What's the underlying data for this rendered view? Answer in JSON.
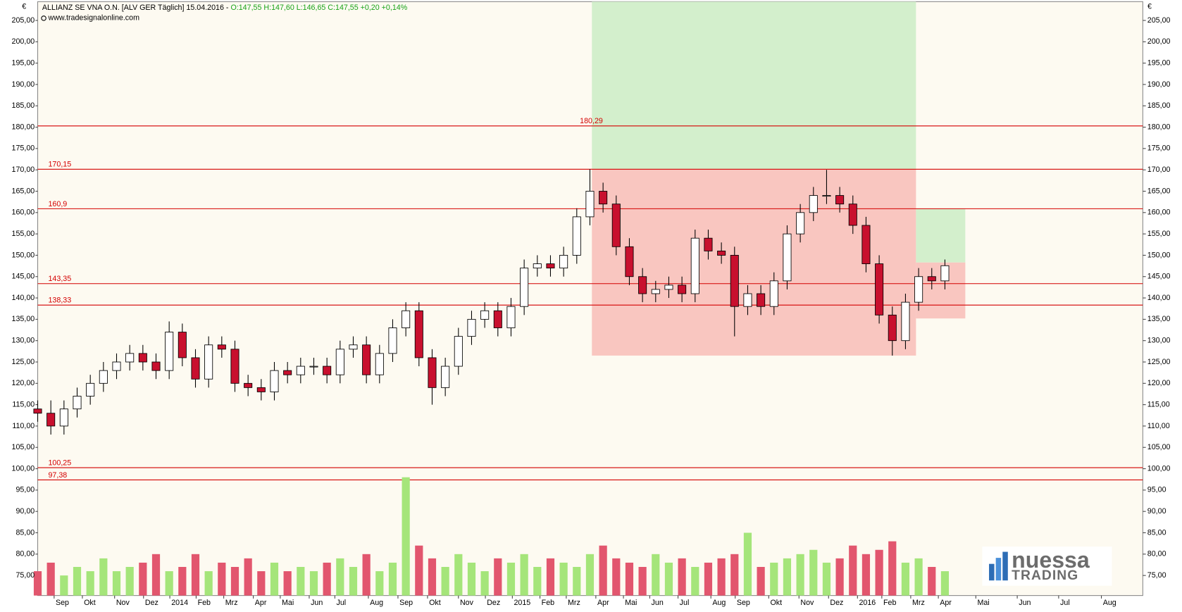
{
  "chart_data": {
    "type": "candlestick",
    "title": "ALLIANZ SE VNA O.N. [ALV GER  Täglich] 15.04.2016 -",
    "quote": "O:147,55 H:147,60 L:146,65 C:147,55 +0,20 +0,14%",
    "subtitle": "www.tradesignalonline.com",
    "currency": "€",
    "logo": [
      "nuessa",
      "TRADING"
    ],
    "x": [
      0,
      2,
      4,
      6,
      8,
      10,
      12,
      14,
      16,
      18,
      20,
      22,
      24,
      26,
      28,
      30,
      32,
      34,
      36,
      38,
      40,
      42,
      44,
      46,
      48,
      50,
      52,
      54,
      56,
      58,
      60,
      62,
      64,
      66,
      68,
      70,
      72,
      74,
      76,
      78,
      80,
      82,
      84,
      86,
      88,
      90,
      92,
      94,
      96,
      98,
      100,
      102,
      104,
      106,
      108,
      110,
      112,
      114,
      116,
      118,
      120,
      122,
      124,
      126,
      128,
      130,
      132,
      134,
      136,
      138
    ],
    "open": [
      114,
      113,
      110,
      114,
      117,
      120,
      123,
      125,
      127,
      125,
      123,
      132,
      126,
      121,
      129,
      128,
      120,
      119,
      118,
      123,
      122,
      124,
      124,
      122,
      128,
      129,
      122,
      127,
      133,
      137,
      126,
      119,
      124,
      131,
      135,
      137,
      133,
      138,
      147,
      148,
      147,
      150,
      159,
      165,
      162,
      152,
      145,
      141,
      142,
      143,
      141,
      154,
      151,
      150,
      138,
      141,
      138,
      144,
      155,
      160,
      164,
      164,
      162,
      157,
      148,
      136,
      130,
      139,
      145,
      144
    ],
    "high": [
      116,
      116,
      116,
      119,
      122,
      125,
      127,
      129,
      129,
      127,
      134.5,
      134,
      128,
      131,
      131,
      130,
      122,
      121,
      125,
      125,
      126,
      126,
      126,
      130,
      131,
      131,
      129,
      135,
      139,
      139,
      128,
      126,
      133,
      137,
      139,
      139,
      140,
      149,
      150,
      150,
      152,
      161,
      170.15,
      167,
      164,
      154,
      147,
      144,
      145,
      145,
      156,
      156,
      153,
      152,
      143,
      143,
      146,
      157,
      162,
      166,
      170,
      166,
      164,
      159,
      150,
      138,
      141,
      147,
      147,
      149
    ],
    "low": [
      111,
      108,
      108,
      112,
      115,
      118,
      121,
      123,
      123,
      121,
      121,
      124,
      119,
      119,
      126,
      118,
      117,
      116,
      116,
      120,
      120,
      122,
      120,
      120,
      126,
      120,
      120,
      125,
      131,
      124,
      115,
      117,
      122,
      129,
      133,
      131,
      131,
      136,
      145,
      145,
      145,
      148,
      157,
      160,
      150,
      143,
      139,
      139,
      140,
      139,
      139,
      149,
      148,
      131,
      136,
      136,
      136,
      142,
      153,
      158,
      162,
      160,
      155,
      146,
      134,
      126.5,
      128,
      137,
      142,
      142
    ],
    "close": [
      113,
      110,
      114,
      117,
      120,
      123,
      125,
      127,
      125,
      123,
      132,
      126,
      121,
      129,
      128,
      120,
      119,
      118,
      123,
      122,
      124,
      124,
      122,
      128,
      129,
      122,
      127,
      133,
      137,
      126,
      119,
      124,
      131,
      135,
      137,
      133,
      138,
      147,
      148,
      147,
      150,
      159,
      165,
      162,
      152,
      145,
      141,
      142,
      143,
      141,
      154,
      151,
      150,
      138,
      141,
      138,
      144,
      155,
      160,
      164,
      164,
      162,
      157,
      148,
      136,
      130,
      139,
      145,
      144,
      147.55
    ],
    "volume": [
      76,
      78,
      75,
      77,
      76,
      79,
      76,
      77,
      78,
      80,
      76,
      77,
      80,
      76,
      78,
      77,
      79,
      76,
      78,
      76,
      77,
      76,
      78,
      79,
      77,
      80,
      76,
      78,
      98,
      82,
      79,
      77,
      80,
      78,
      76,
      79,
      78,
      80,
      77,
      79,
      78,
      77,
      80,
      82,
      79,
      78,
      77,
      80,
      78,
      79,
      77,
      78,
      79,
      80,
      85,
      77,
      78,
      79,
      80,
      81,
      78,
      79,
      82,
      80,
      81,
      83,
      78,
      79,
      77,
      76
    ],
    "up_color": "#ffffff",
    "down_color": "#c8102e",
    "volume_up_color": "#a5e57a",
    "volume_down_color": "#e2566e",
    "xlim": [
      0,
      168.1
    ],
    "ylim": [
      70.3,
      209.4
    ],
    "xticks": [
      {
        "value": 2.5,
        "label": "Sep"
      },
      {
        "value": 6.8,
        "label": "Okt"
      },
      {
        "value": 11.7,
        "label": "Nov"
      },
      {
        "value": 16.1,
        "label": "Dez"
      },
      {
        "value": 20.1,
        "label": "2014"
      },
      {
        "value": 24.1,
        "label": "Feb"
      },
      {
        "value": 28.3,
        "label": "Mrz"
      },
      {
        "value": 32.8,
        "label": "Apr"
      },
      {
        "value": 36.9,
        "label": "Mai"
      },
      {
        "value": 41.3,
        "label": "Jun"
      },
      {
        "value": 45.2,
        "label": "Jul"
      },
      {
        "value": 50.3,
        "label": "Aug"
      },
      {
        "value": 54.8,
        "label": "Sep"
      },
      {
        "value": 59.3,
        "label": "Okt"
      },
      {
        "value": 64.0,
        "label": "Nov"
      },
      {
        "value": 68.1,
        "label": "Dez"
      },
      {
        "value": 72.2,
        "label": "2015"
      },
      {
        "value": 76.4,
        "label": "Feb"
      },
      {
        "value": 80.4,
        "label": "Mrz"
      },
      {
        "value": 84.9,
        "label": "Apr"
      },
      {
        "value": 89.1,
        "label": "Mai"
      },
      {
        "value": 93.1,
        "label": "Jun"
      },
      {
        "value": 97.4,
        "label": "Jul"
      },
      {
        "value": 102.4,
        "label": "Aug"
      },
      {
        "value": 106.1,
        "label": "Sep"
      },
      {
        "value": 111.2,
        "label": "Okt"
      },
      {
        "value": 115.8,
        "label": "Nov"
      },
      {
        "value": 120.3,
        "label": "Dez"
      },
      {
        "value": 124.7,
        "label": "2016"
      },
      {
        "value": 128.4,
        "label": "Feb"
      },
      {
        "value": 132.8,
        "label": "Mrz"
      },
      {
        "value": 137.0,
        "label": "Apr"
      },
      {
        "value": 142.7,
        "label": "Mai"
      },
      {
        "value": 149.0,
        "label": "Jun"
      },
      {
        "value": 155.3,
        "label": "Jul"
      },
      {
        "value": 161.8,
        "label": "Aug"
      }
    ],
    "yticks": [
      {
        "value": 205,
        "label": "205,00"
      },
      {
        "value": 200,
        "label": "200,00"
      },
      {
        "value": 195,
        "label": "195,00"
      },
      {
        "value": 190,
        "label": "190,00"
      },
      {
        "value": 185,
        "label": "185,00"
      },
      {
        "value": 180,
        "label": "180,00"
      },
      {
        "value": 175,
        "label": "175,00"
      },
      {
        "value": 170,
        "label": "170,00"
      },
      {
        "value": 165,
        "label": "165,00"
      },
      {
        "value": 160,
        "label": "160,00"
      },
      {
        "value": 155,
        "label": "155,00"
      },
      {
        "value": 150,
        "label": "150,00"
      },
      {
        "value": 145,
        "label": "145,00"
      },
      {
        "value": 140,
        "label": "140,00"
      },
      {
        "value": 135,
        "label": "135,00"
      },
      {
        "value": 130,
        "label": "130,00"
      },
      {
        "value": 125,
        "label": "125,00"
      },
      {
        "value": 120,
        "label": "120,00"
      },
      {
        "value": 115,
        "label": "115,00"
      },
      {
        "value": 110,
        "label": "110,00"
      },
      {
        "value": 105,
        "label": "105,00"
      },
      {
        "value": 100,
        "label": "100,00"
      },
      {
        "value": 95,
        "label": "95,00"
      },
      {
        "value": 90,
        "label": "90,00"
      },
      {
        "value": 85,
        "label": "85,00"
      },
      {
        "value": 80,
        "label": "80,00"
      },
      {
        "value": 75,
        "label": "75,00"
      }
    ],
    "levels": [
      {
        "value": 180.29,
        "label": "180,29"
      },
      {
        "value": 170.15,
        "label": "170,15"
      },
      {
        "value": 160.9,
        "label": "160,9"
      },
      {
        "value": 143.35,
        "label": "143,35"
      },
      {
        "value": 138.33,
        "label": "138,33"
      },
      {
        "value": 100.25,
        "label": "100,25"
      },
      {
        "value": 97.38,
        "label": "97,38"
      }
    ],
    "level_color": "#d40000",
    "zones": [
      {
        "x": [
          84.3,
          133.6
        ],
        "y": [
          170.15,
          209.4
        ],
        "color": "#d3efcc"
      },
      {
        "x": [
          84.3,
          133.6
        ],
        "y": [
          126.5,
          170.15
        ],
        "color": "#f9c6c0"
      },
      {
        "x": [
          133.6,
          141.1
        ],
        "y": [
          148.3,
          160.9
        ],
        "color": "#d3efcc"
      },
      {
        "x": [
          133.6,
          141.1
        ],
        "y": [
          135.2,
          148.3
        ],
        "color": "#f9c6c0"
      }
    ]
  }
}
